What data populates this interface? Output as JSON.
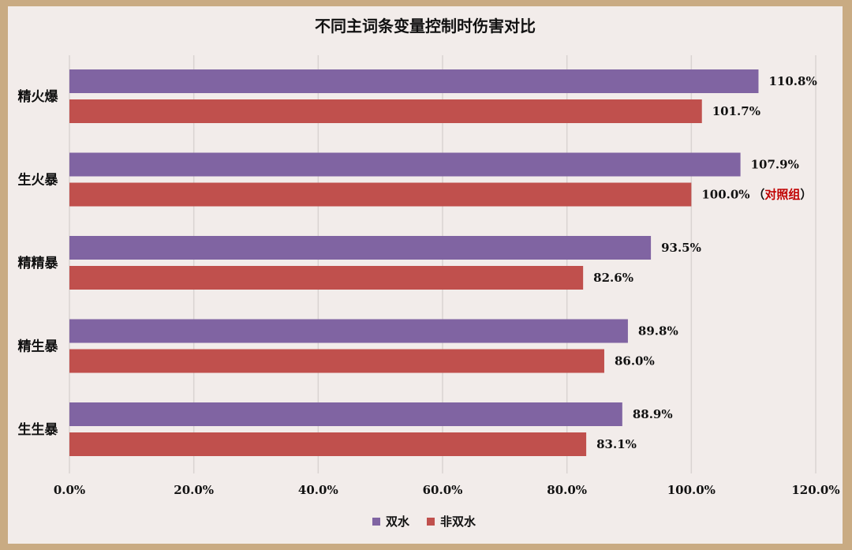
{
  "chart_data": {
    "type": "bar",
    "orientation": "horizontal",
    "title": "不同主词条变量控制时伤害对比",
    "categories": [
      "精火爆",
      "生火暴",
      "精精暴",
      "精生暴",
      "生生暴"
    ],
    "series": [
      {
        "name": "双水",
        "color": "#8064a2",
        "values": [
          110.8,
          107.9,
          93.5,
          89.8,
          88.9
        ]
      },
      {
        "name": "非双水",
        "color": "#c0504d",
        "values": [
          101.7,
          100.0,
          82.6,
          86.0,
          83.1
        ]
      }
    ],
    "data_labels": [
      [
        "110.8%",
        "107.9%",
        "93.5%",
        "89.8%",
        "88.9%"
      ],
      [
        "101.7%",
        "100.0%",
        "82.6%",
        "86.0%",
        "83.1%"
      ]
    ],
    "annotation": {
      "category_index": 1,
      "series_index": 1,
      "open": "（",
      "text": "对照组",
      "close": "）",
      "color": "#c00000"
    },
    "xlim": [
      0,
      120
    ],
    "x_ticks": [
      0,
      20,
      40,
      60,
      80,
      100,
      120
    ],
    "x_tick_labels": [
      "0.0%",
      "20.0%",
      "40.0%",
      "60.0%",
      "80.0%",
      "100.0%",
      "120.0%"
    ],
    "grid": true,
    "legend_position": "bottom"
  }
}
